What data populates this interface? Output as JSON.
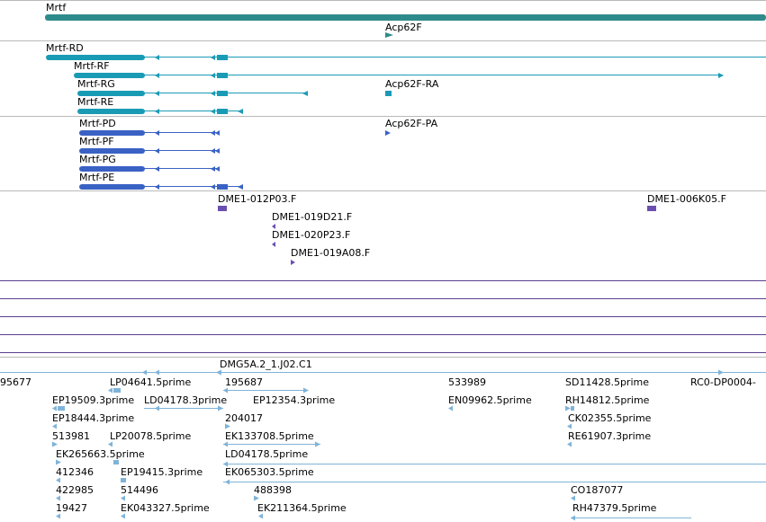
{
  "tracks": {
    "gene": {
      "color": "#2e8b8b",
      "labels": [
        "Mrtf",
        "Acp62F"
      ]
    },
    "transcripts_teal": {
      "color": "#1a9bb5",
      "labels": [
        "Mrtf-RD",
        "Mrtf-RF",
        "Mrtf-RG",
        "Mrtf-RE",
        "Acp62F-RA"
      ]
    },
    "transcripts_blue": {
      "color": "#3a62c4",
      "labels": [
        "Mrtf-PD",
        "Mrtf-PF",
        "Mrtf-PG",
        "Mrtf-PE",
        "Acp62F-PA"
      ]
    },
    "clones": {
      "color": "#6a4fb0",
      "labels": [
        "DME1-012P03.F",
        "DME1-006K05.F",
        "DME1-019D21.F",
        "DME1-020P23.F",
        "DME1-019A08.F"
      ]
    },
    "separator_color": "#5a3f8f",
    "ests": {
      "color": "#7fb3d8",
      "labels": [
        "DMG5A.2_1.J02.C1",
        "95677",
        "LP04641.5prime",
        "195687",
        "533989",
        "SD11428.5prime",
        "RC0-DP0004-",
        "EP19509.3prime",
        "LD04178.3prime",
        "EP12354.3prime",
        "EN09962.5prime",
        "RH14812.5prime",
        "EP18444.3prime",
        "204017",
        "CK02355.5prime",
        "513981",
        "LP20078.5prime",
        "EK133708.5prime",
        "RE61907.3prime",
        "EK265663.5prime",
        "LD04178.5prime",
        "412346",
        "EP19415.3prime",
        "EK065303.5prime",
        "422985",
        "514496",
        "488398",
        "CO187077",
        "19427",
        "EK043327.5prime",
        "EK211364.5prime",
        "RH47379.5prime"
      ]
    }
  }
}
